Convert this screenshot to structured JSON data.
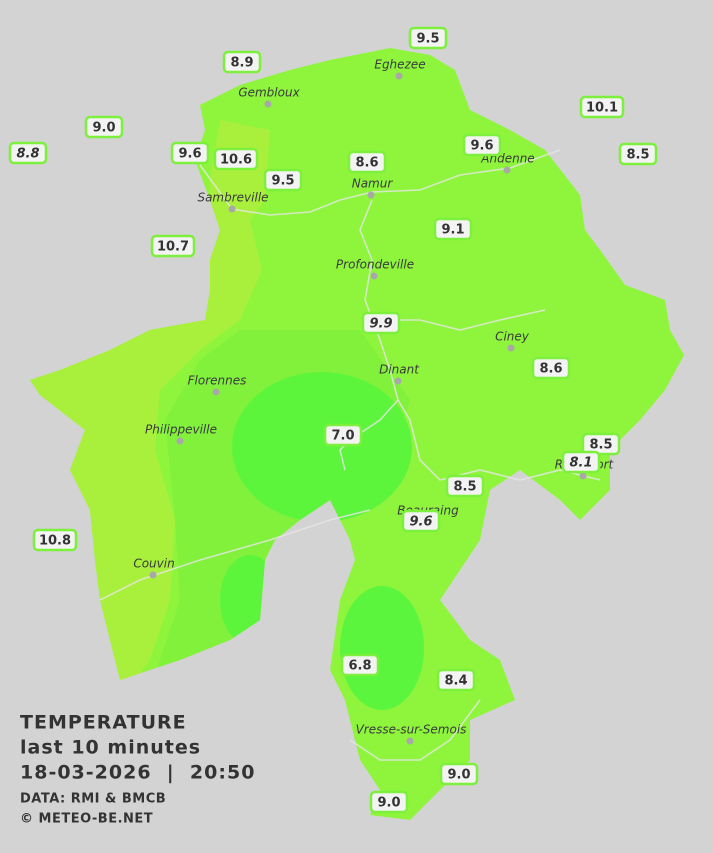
{
  "header": {
    "title": "TEMPERATURE",
    "subtitle": "last 10 minutes",
    "timestamp": "18-03-2026  |  20:50",
    "source": "DATA: RMI & BMCB",
    "credit": "© METEO-BE.NET"
  },
  "towns": [
    {
      "name": "Gembloux"
    },
    {
      "name": "Eghezee"
    },
    {
      "name": "Andenne"
    },
    {
      "name": "Namur"
    },
    {
      "name": "Sambreville"
    },
    {
      "name": "Profondeville"
    },
    {
      "name": "Ciney"
    },
    {
      "name": "Dinant"
    },
    {
      "name": "Florennes"
    },
    {
      "name": "Philippeville"
    },
    {
      "name": "Rochefort"
    },
    {
      "name": "Beauraing"
    },
    {
      "name": "Couvin"
    },
    {
      "name": "Vresse-sur-Semois"
    }
  ],
  "stations": [
    {
      "label": "8.9"
    },
    {
      "label": "9.5"
    },
    {
      "label": "10.1"
    },
    {
      "label": "9.0"
    },
    {
      "label": "8.8",
      "italic": true
    },
    {
      "label": "9.6"
    },
    {
      "label": "10.6"
    },
    {
      "label": "9.5"
    },
    {
      "label": "8.6"
    },
    {
      "label": "9.6"
    },
    {
      "label": "8.5"
    },
    {
      "label": "10.7"
    },
    {
      "label": "9.1"
    },
    {
      "label": "9.9",
      "italic": true
    },
    {
      "label": "8.6"
    },
    {
      "label": "7.0"
    },
    {
      "label": "8.5"
    },
    {
      "label": "8.1",
      "italic": true
    },
    {
      "label": "8.5"
    },
    {
      "label": "9.6",
      "italic": true
    },
    {
      "label": "10.8"
    },
    {
      "label": "6.8"
    },
    {
      "label": "8.4"
    },
    {
      "label": "9.0"
    },
    {
      "label": "9.0"
    }
  ]
}
